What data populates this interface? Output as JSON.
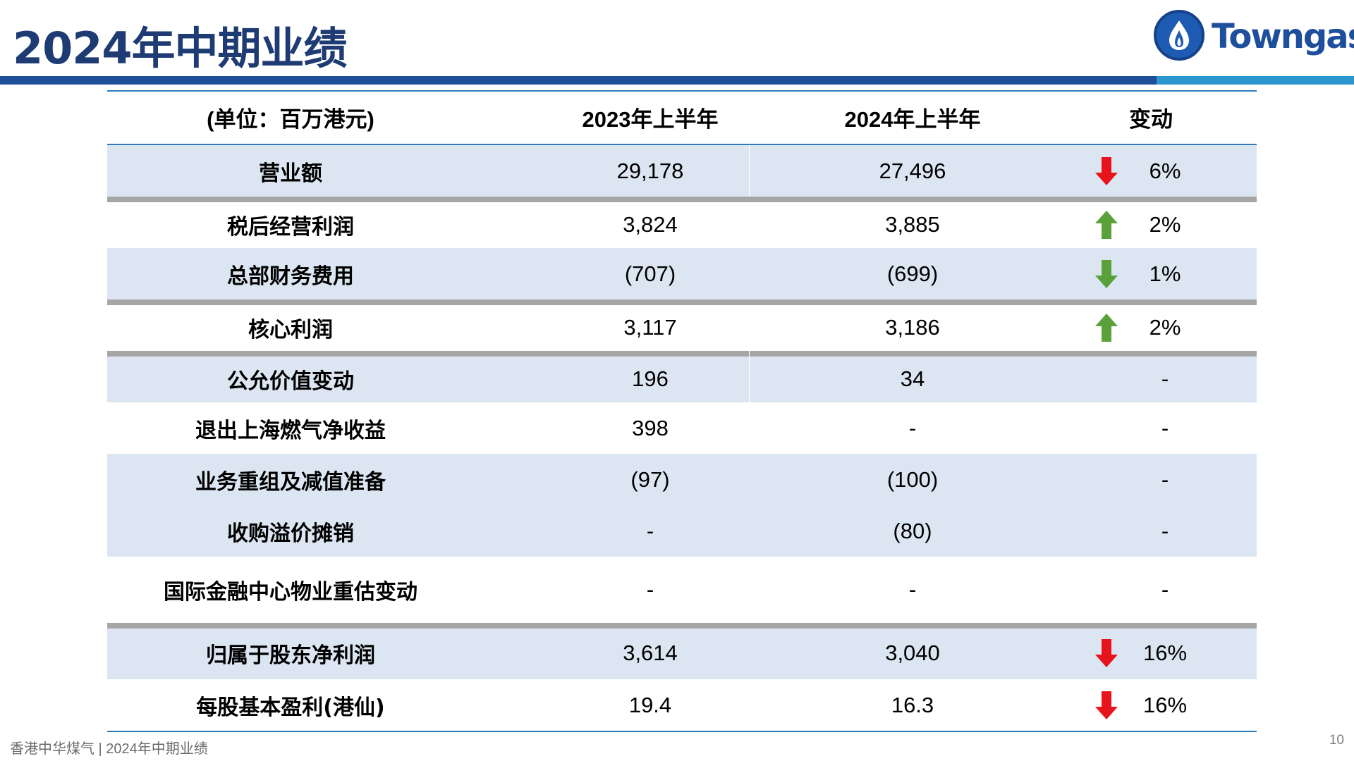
{
  "header": {
    "title": "2024年中期业绩",
    "logo_text": "Towngas"
  },
  "colors": {
    "title": "#1f3b73",
    "bar_dark": "#1f4e99",
    "bar_light": "#2b96d0",
    "row_shade": "#dce6f2",
    "separator": "#a6a6a6",
    "arrow_down": "#e8141b",
    "arrow_up": "#5aa13a"
  },
  "table": {
    "headers": [
      "(单位：百万港元)",
      "2023年上半年",
      "2024年上半年",
      "变动"
    ],
    "rows": [
      {
        "label": "营业额",
        "v2023": "29,178",
        "v2024": "27,496",
        "change": "6%",
        "arrow": "down-red-icon"
      },
      {
        "label": "税后经营利润",
        "v2023": "3,824",
        "v2024": "3,885",
        "change": "2%",
        "arrow": "up-green-icon"
      },
      {
        "label": "总部财务费用",
        "v2023": "(707)",
        "v2024": "(699)",
        "change": "1%",
        "arrow": "down-green-icon"
      },
      {
        "label": "核心利润",
        "v2023": "3,117",
        "v2024": "3,186",
        "change": "2%",
        "arrow": "up-green-icon"
      },
      {
        "label": "公允价值变动",
        "v2023": "196",
        "v2024": "34",
        "change": "-",
        "arrow": ""
      },
      {
        "label": "退出上海燃气净收益",
        "v2023": "398",
        "v2024": "-",
        "change": "-",
        "arrow": ""
      },
      {
        "label": "业务重组及减值准备",
        "v2023": "(97)",
        "v2024": "(100)",
        "change": "-",
        "arrow": ""
      },
      {
        "label": "收购溢价摊销",
        "v2023": "-",
        "v2024": "(80)",
        "change": "-",
        "arrow": ""
      },
      {
        "label": "国际金融中心物业重估变动",
        "v2023": "-",
        "v2024": "-",
        "change": "-",
        "arrow": ""
      },
      {
        "label": "归属于股东净利润",
        "v2023": "3,614",
        "v2024": "3,040",
        "change": "16%",
        "arrow": "down-red-icon"
      },
      {
        "label": "每股基本盈利(港仙)",
        "v2023": "19.4",
        "v2024": "16.3",
        "change": "16%",
        "arrow": "down-red-icon"
      }
    ]
  },
  "footer": {
    "text": "香港中华煤气 | 2024年中期业绩",
    "page_number": "10"
  }
}
